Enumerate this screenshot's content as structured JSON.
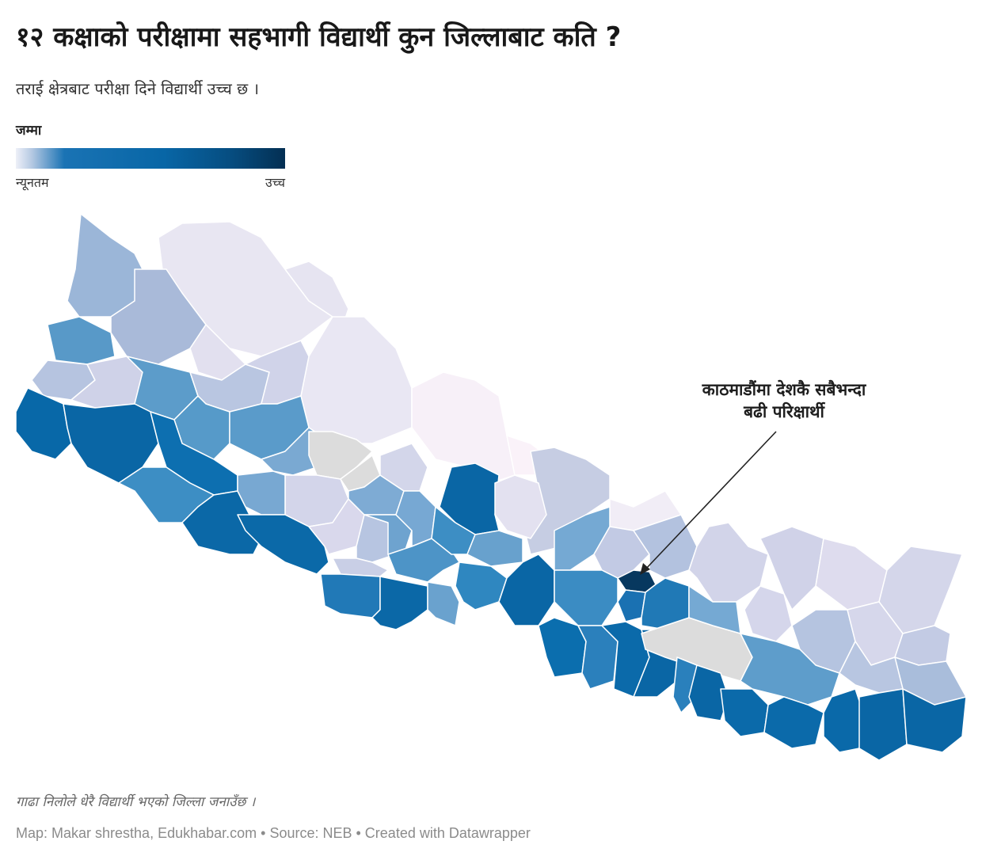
{
  "header": {
    "title": "१२ कक्षाको परीक्षामा सहभागी विद्यार्थी कुन जिल्लाबाट कति ?",
    "subtitle": "तराई क्षेत्रबाट परीक्षा दिने विद्यार्थी उच्च छ ।"
  },
  "legend": {
    "title": "जम्मा",
    "min_label": "न्यूनतम",
    "max_label": "उच्च",
    "colors": [
      "#eef0f8",
      "#b4c8e2",
      "#1a73b4",
      "#0866a6",
      "#064d80",
      "#042f53"
    ]
  },
  "map": {
    "annotation": {
      "line1": "काठमाडौंमा देशकै सबैभन्दा",
      "line2": "बढी परिक्षार्थी"
    },
    "colors": {
      "no_data": "#dcdcdc",
      "lowest": "#fbf3f9",
      "highest": "#0b3c5e",
      "border": "#ffffff",
      "pointer": "#222222"
    }
  },
  "notes": {
    "description": "गाढा निलोले धेरै विद्यार्थी भएको जिल्ला जनाउँछ ।",
    "source": "Map: Makar shrestha, Edukhabar.com • Source: NEB • Created with Datawrapper"
  }
}
